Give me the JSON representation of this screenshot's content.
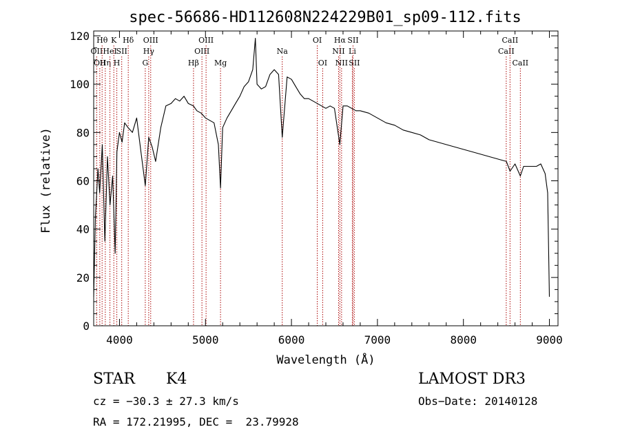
{
  "chart_data": {
    "type": "line",
    "title": "spec-56686-HD112608N224229B01_sp09-112.fits",
    "xlabel": "Wavelength (Å)",
    "ylabel": "Flux (relative)",
    "xlim": [
      3700,
      9100
    ],
    "ylim": [
      0,
      122
    ],
    "xticks": [
      4000,
      5000,
      6000,
      7000,
      8000,
      9000
    ],
    "yticks": [
      0,
      20,
      40,
      60,
      80,
      100,
      120
    ],
    "grid": false,
    "line_color": "#000000",
    "marker_color": "#aa0000",
    "series": [
      {
        "x": [
          3700,
          3720,
          3750,
          3770,
          3800,
          3830,
          3860,
          3890,
          3920,
          3950,
          3970,
          4000,
          4030,
          4060,
          4100,
          4150,
          4200,
          4250,
          4300,
          4340,
          4380,
          4420,
          4480,
          4540,
          4600,
          4650,
          4700,
          4750,
          4800,
          4860,
          4900,
          4950,
          5000,
          5050,
          5100,
          5150,
          5175,
          5200,
          5250,
          5300,
          5350,
          5400,
          5450,
          5500,
          5550,
          5580,
          5600,
          5650,
          5700,
          5750,
          5800,
          5850,
          5893,
          5950,
          6000,
          6050,
          6100,
          6150,
          6200,
          6250,
          6300,
          6350,
          6400,
          6450,
          6500,
          6563,
          6600,
          6650,
          6700,
          6750,
          6800,
          6900,
          7000,
          7100,
          7200,
          7300,
          7400,
          7500,
          7600,
          7700,
          7800,
          7900,
          8000,
          8100,
          8200,
          8300,
          8400,
          8500,
          8542,
          8600,
          8662,
          8700,
          8800,
          8850,
          8900,
          8950,
          8980,
          9000
        ],
        "y": [
          12,
          45,
          65,
          55,
          75,
          35,
          70,
          50,
          62,
          30,
          72,
          80,
          76,
          84,
          82,
          80,
          86,
          72,
          58,
          78,
          74,
          68,
          82,
          91,
          92,
          94,
          93,
          95,
          92,
          91,
          89,
          88,
          86,
          85,
          84,
          75,
          57,
          82,
          86,
          89,
          92,
          95,
          99,
          101,
          106,
          119,
          100,
          98,
          99,
          104,
          106,
          104,
          78,
          103,
          102,
          99,
          96,
          94,
          94,
          93,
          92,
          91,
          90,
          91,
          90,
          75,
          91,
          91,
          90,
          89,
          89,
          88,
          86,
          84,
          83,
          81,
          80,
          79,
          77,
          76,
          75,
          74,
          73,
          72,
          71,
          70,
          69,
          68,
          64,
          67,
          62,
          66,
          66,
          66,
          67,
          63,
          55,
          12
        ]
      }
    ],
    "line_markers": [
      {
        "x": 3735,
        "label": "OII",
        "row": 2
      },
      {
        "x": 3771,
        "label": "OII",
        "row": 3
      },
      {
        "x": 3798,
        "label": "Hθ",
        "row": 1
      },
      {
        "x": 3835,
        "label": "Hη",
        "row": 3
      },
      {
        "x": 3889,
        "label": "HeI",
        "row": 2
      },
      {
        "x": 3934,
        "label": "K",
        "row": 1
      },
      {
        "x": 3969,
        "label": "H",
        "row": 3
      },
      {
        "x": 4026,
        "label": "SII",
        "row": 2
      },
      {
        "x": 4102,
        "label": "Hδ",
        "row": 1
      },
      {
        "x": 4300,
        "label": "G",
        "row": 3
      },
      {
        "x": 4340,
        "label": "Hγ",
        "row": 2
      },
      {
        "x": 4363,
        "label": "OIII",
        "row": 1
      },
      {
        "x": 4861,
        "label": "Hβ",
        "row": 3
      },
      {
        "x": 4959,
        "label": "OIII",
        "row": 2
      },
      {
        "x": 5007,
        "label": "OIII",
        "row": 1
      },
      {
        "x": 5175,
        "label": "Mg",
        "row": 3
      },
      {
        "x": 5893,
        "label": "Na",
        "row": 2
      },
      {
        "x": 6300,
        "label": "OI",
        "row": 1
      },
      {
        "x": 6363,
        "label": "OI",
        "row": 3
      },
      {
        "x": 6548,
        "label": "NII",
        "row": 2
      },
      {
        "x": 6563,
        "label": "Hα",
        "row": 1
      },
      {
        "x": 6583,
        "label": "NII",
        "row": 3
      },
      {
        "x": 6708,
        "label": "Li",
        "row": 2
      },
      {
        "x": 6716,
        "label": "SII",
        "row": 1
      },
      {
        "x": 6731,
        "label": "SII",
        "row": 3
      },
      {
        "x": 8498,
        "label": "CaII",
        "row": 2
      },
      {
        "x": 8542,
        "label": "CaII",
        "row": 1
      },
      {
        "x": 8662,
        "label": "CaII",
        "row": 3
      }
    ]
  },
  "info": {
    "class": "STAR",
    "subclass": "K4",
    "survey": "LAMOST DR3",
    "cz": "cz = −30.3 ± 27.3 km/s",
    "obs_date": "Obs−Date: 20140128",
    "radec": "RA = 172.21995, DEC =  23.79928"
  }
}
